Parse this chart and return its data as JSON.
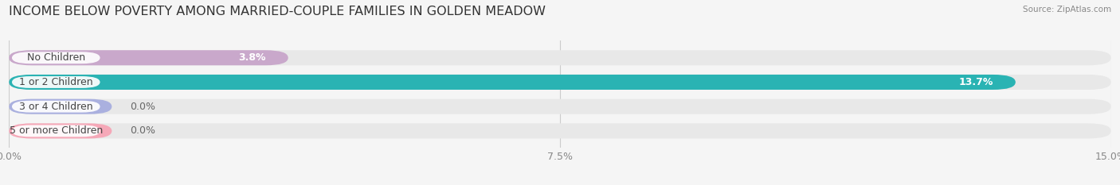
{
  "title": "INCOME BELOW POVERTY AMONG MARRIED-COUPLE FAMILIES IN GOLDEN MEADOW",
  "source": "Source: ZipAtlas.com",
  "categories": [
    "No Children",
    "1 or 2 Children",
    "3 or 4 Children",
    "5 or more Children"
  ],
  "values": [
    3.8,
    13.7,
    0.0,
    0.0
  ],
  "bar_colors": [
    "#c9a8cb",
    "#2ab3b3",
    "#aab0df",
    "#f5a8b8"
  ],
  "xlim": [
    0,
    15.0
  ],
  "xticks": [
    0.0,
    7.5,
    15.0
  ],
  "xticklabels": [
    "0.0%",
    "7.5%",
    "15.0%"
  ],
  "background_color": "#f5f5f5",
  "bar_background_color": "#e8e8e8",
  "title_fontsize": 11.5,
  "bar_height": 0.62,
  "bar_label_fontsize": 9,
  "value_label_fontsize": 9
}
